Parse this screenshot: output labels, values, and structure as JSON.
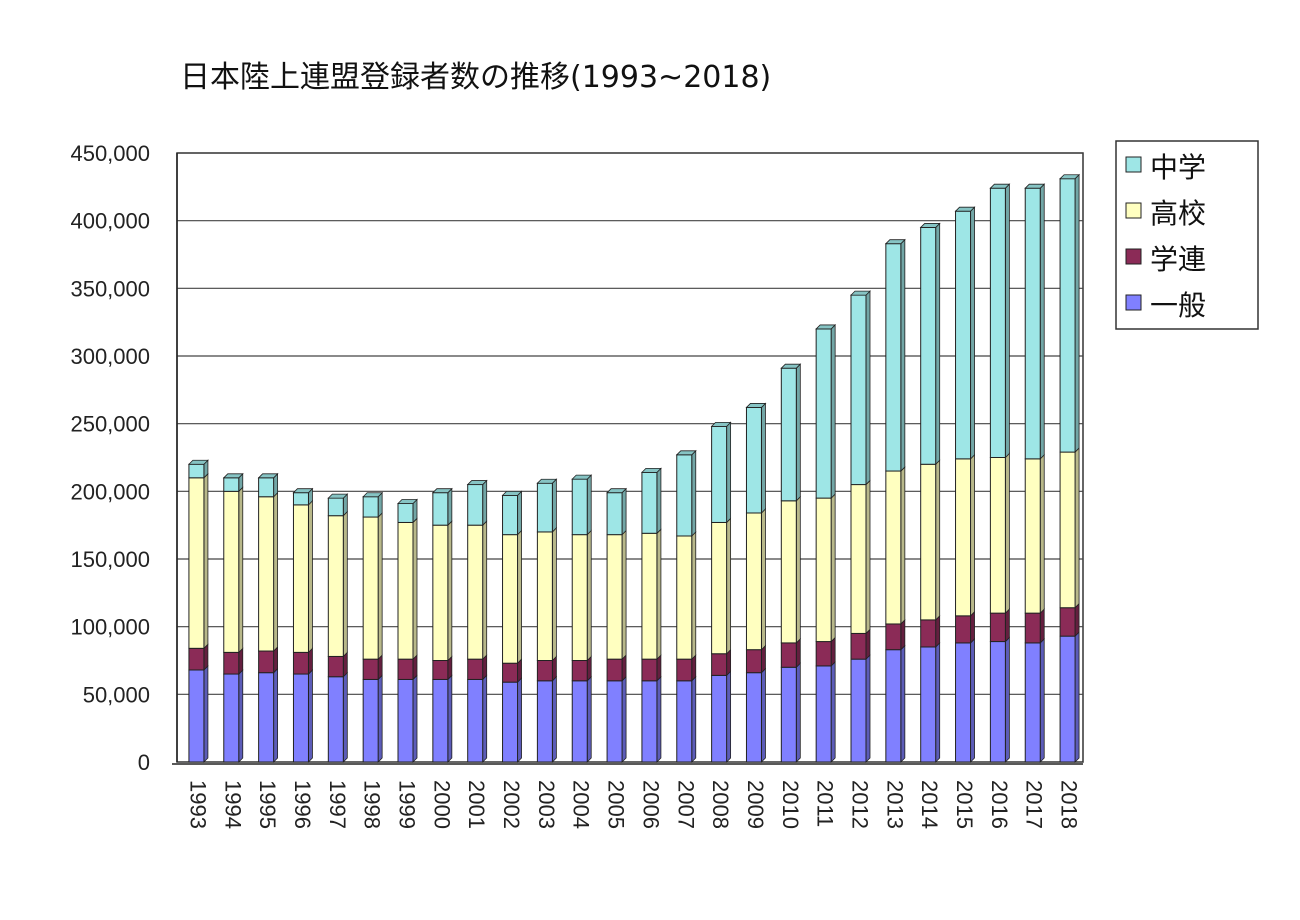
{
  "chart_data": {
    "type": "bar",
    "stacked": true,
    "title": "日本陸上連盟登録者数の推移(1993~2018)",
    "xlabel": "",
    "ylabel": "",
    "ylim": [
      0,
      450000
    ],
    "ytick_step": 50000,
    "y_ticks": [
      "0",
      "50,000",
      "100,000",
      "150,000",
      "200,000",
      "250,000",
      "300,000",
      "350,000",
      "400,000",
      "450,000"
    ],
    "grid": true,
    "legend_position": "top-right",
    "categories": [
      "1993",
      "1994",
      "1995",
      "1996",
      "1997",
      "1998",
      "1999",
      "2000",
      "2001",
      "2002",
      "2003",
      "2004",
      "2005",
      "2006",
      "2007",
      "2008",
      "2009",
      "2010",
      "2011",
      "2012",
      "2013",
      "2014",
      "2015",
      "2016",
      "2017",
      "2018"
    ],
    "series": [
      {
        "name": "一般",
        "color": "#8080ff",
        "values": [
          68000,
          65000,
          66000,
          65000,
          63000,
          61000,
          61000,
          61000,
          61000,
          59000,
          60000,
          60000,
          60000,
          60000,
          60000,
          64000,
          66000,
          70000,
          71000,
          76000,
          83000,
          85000,
          88000,
          89000,
          88000,
          93000
        ]
      },
      {
        "name": "学連",
        "color": "#8b2b57",
        "values": [
          16000,
          16000,
          16000,
          16000,
          15000,
          15000,
          15000,
          14000,
          15000,
          14000,
          15000,
          15000,
          16000,
          16000,
          16000,
          16000,
          17000,
          18000,
          18000,
          19000,
          19000,
          20000,
          20000,
          21000,
          22000,
          21000
        ]
      },
      {
        "name": "高校",
        "color": "#ffffc0",
        "values": [
          126000,
          119000,
          114000,
          109000,
          104000,
          105000,
          101000,
          100000,
          99000,
          95000,
          95000,
          93000,
          92000,
          93000,
          91000,
          97000,
          101000,
          105000,
          106000,
          110000,
          113000,
          115000,
          116000,
          115000,
          114000,
          115000
        ]
      },
      {
        "name": "中学",
        "color": "#9ee6e6",
        "values": [
          10000,
          10000,
          14000,
          9000,
          13000,
          15000,
          14000,
          24000,
          30000,
          29000,
          36000,
          41000,
          31000,
          45000,
          60000,
          71000,
          78000,
          98000,
          125000,
          140000,
          168000,
          175000,
          183000,
          199000,
          200000,
          202000
        ]
      }
    ]
  }
}
